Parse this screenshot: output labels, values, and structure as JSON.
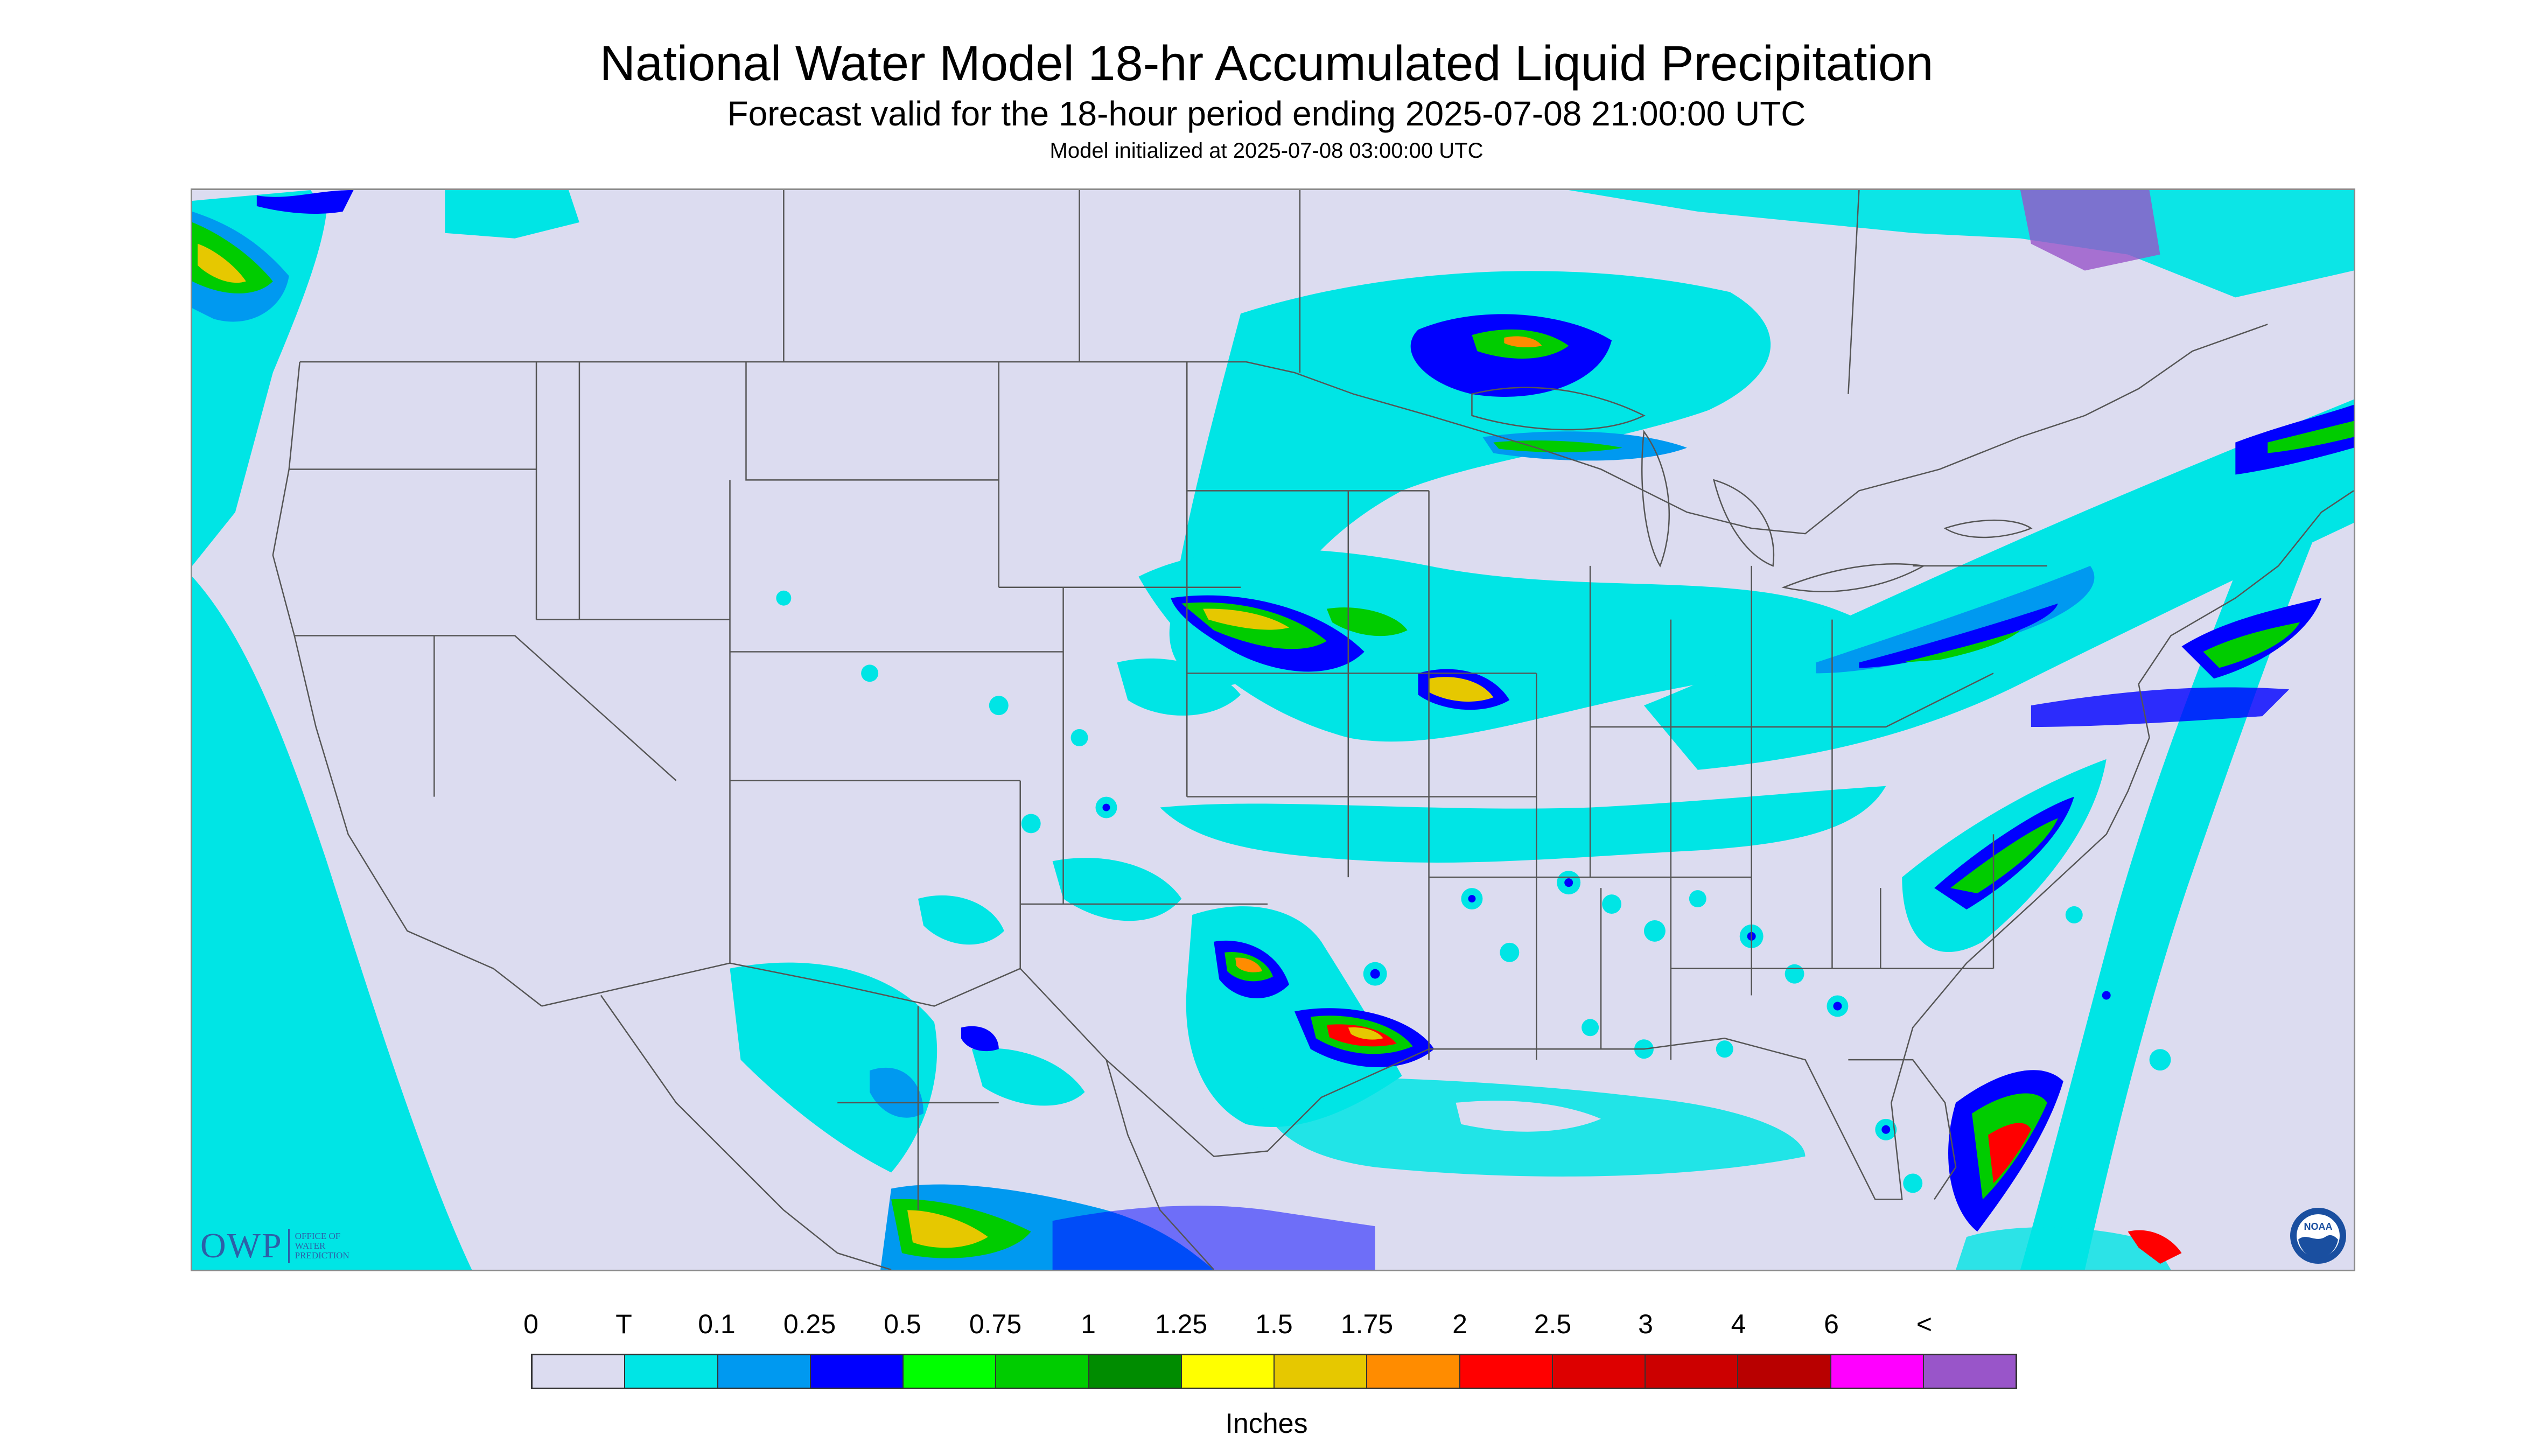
{
  "title": "National Water Model 18-hr Accumulated Liquid Precipitation",
  "subtitle": "Forecast valid for the 18-hour period ending 2025-07-08 21:00:00 UTC",
  "init_line": "Model initialized at 2025-07-08 03:00:00 UTC",
  "logos": {
    "owp_letters": "OWP",
    "owp_words": [
      "OFFICE OF",
      "WATER",
      "PREDICTION"
    ],
    "noaa_text": "NOAA"
  },
  "legend": {
    "tick_labels": [
      "0",
      "T",
      "0.1",
      "0.25",
      "0.5",
      "0.75",
      "1",
      "1.25",
      "1.5",
      "1.75",
      "2",
      "2.5",
      "3",
      "4",
      "6",
      "<"
    ],
    "colors": [
      "#dcdcf0",
      "#00e5e5",
      "#0099f0",
      "#0000ff",
      "#00ff00",
      "#00cc00",
      "#008c00",
      "#ffff00",
      "#e6c800",
      "#ff8c00",
      "#ff0000",
      "#dd0000",
      "#cc0000",
      "#b80000",
      "#ff00ff",
      "#9955c9"
    ],
    "units": "Inches"
  },
  "colors": {
    "land_no_precip": "#dcdcf0",
    "trace": "#00e5e5",
    "boundary_line": "#555555",
    "frame": "#8a8a8a"
  }
}
